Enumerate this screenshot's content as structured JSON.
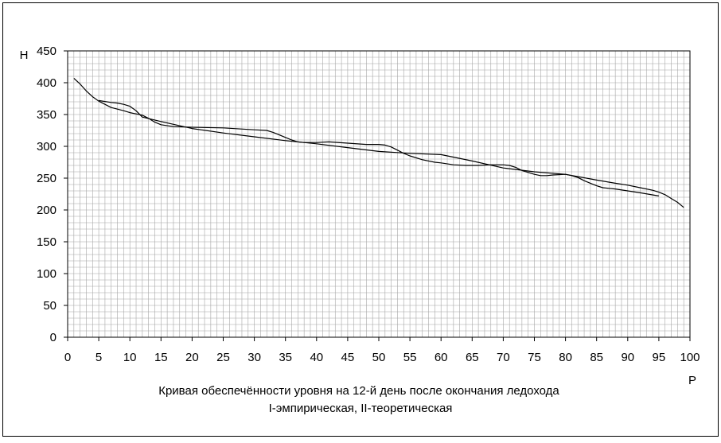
{
  "chart_data": {
    "type": "line",
    "title": "Кривая обеспечённости уровня на 12-й день после окончания ледохода",
    "subtitle": "I-эмпирическая, II-теоретическая",
    "xlabel": "P",
    "ylabel": "H",
    "xlim": [
      0,
      100
    ],
    "ylim": [
      0,
      450
    ],
    "x_ticks": [
      "0",
      "5",
      "10",
      "15",
      "20",
      "25",
      "30",
      "35",
      "40",
      "45",
      "50",
      "55",
      "60",
      "65",
      "70",
      "75",
      "80",
      "85",
      "90",
      "95",
      "100"
    ],
    "y_ticks": [
      "0",
      "50",
      "100",
      "150",
      "200",
      "250",
      "300",
      "350",
      "400",
      "450"
    ],
    "grid": true,
    "legend": "none",
    "colors": {
      "line": "#000000",
      "grid": "#a6a6a6",
      "frame": "#000000"
    },
    "series": [
      {
        "x": [
          1,
          2,
          3,
          4,
          5,
          7,
          9,
          10,
          11,
          12,
          13,
          14,
          15,
          17,
          20,
          25,
          30,
          32,
          33,
          34,
          35,
          36,
          37,
          38,
          40,
          42,
          45,
          48,
          50,
          51,
          52,
          53,
          54,
          55,
          57,
          59,
          60,
          62,
          64,
          66,
          68,
          70,
          71,
          72,
          73,
          74,
          75,
          76,
          77,
          78,
          80,
          81,
          82,
          83,
          84,
          85,
          86,
          87,
          88,
          90,
          92,
          95
        ],
        "y": [
          407,
          398,
          387,
          378,
          371,
          361,
          356,
          353,
          351,
          349,
          344,
          338,
          334,
          331,
          330,
          329,
          326,
          325,
          322,
          318,
          314,
          310,
          307,
          306,
          306,
          307,
          305,
          303,
          303,
          302,
          299,
          294,
          289,
          285,
          279,
          275,
          274,
          271,
          270,
          270,
          271,
          271,
          270,
          267,
          262,
          259,
          256,
          254,
          254,
          255,
          256,
          254,
          251,
          246,
          242,
          238,
          235,
          234,
          233,
          230,
          227,
          222
        ]
      },
      {
        "x": [
          5,
          7,
          8,
          9,
          10,
          11,
          12,
          15,
          20,
          25,
          30,
          35,
          40,
          45,
          50,
          55,
          60,
          65,
          70,
          75,
          80,
          85,
          88,
          90,
          92,
          94,
          95,
          96,
          97,
          98,
          99
        ],
        "y": [
          372,
          369,
          368,
          366,
          363,
          356,
          346,
          339,
          328,
          321,
          315,
          309,
          304,
          298,
          292,
          289,
          287,
          277,
          266,
          260,
          256,
          247,
          242,
          239,
          235,
          231,
          228,
          224,
          218,
          212,
          204
        ]
      }
    ]
  }
}
